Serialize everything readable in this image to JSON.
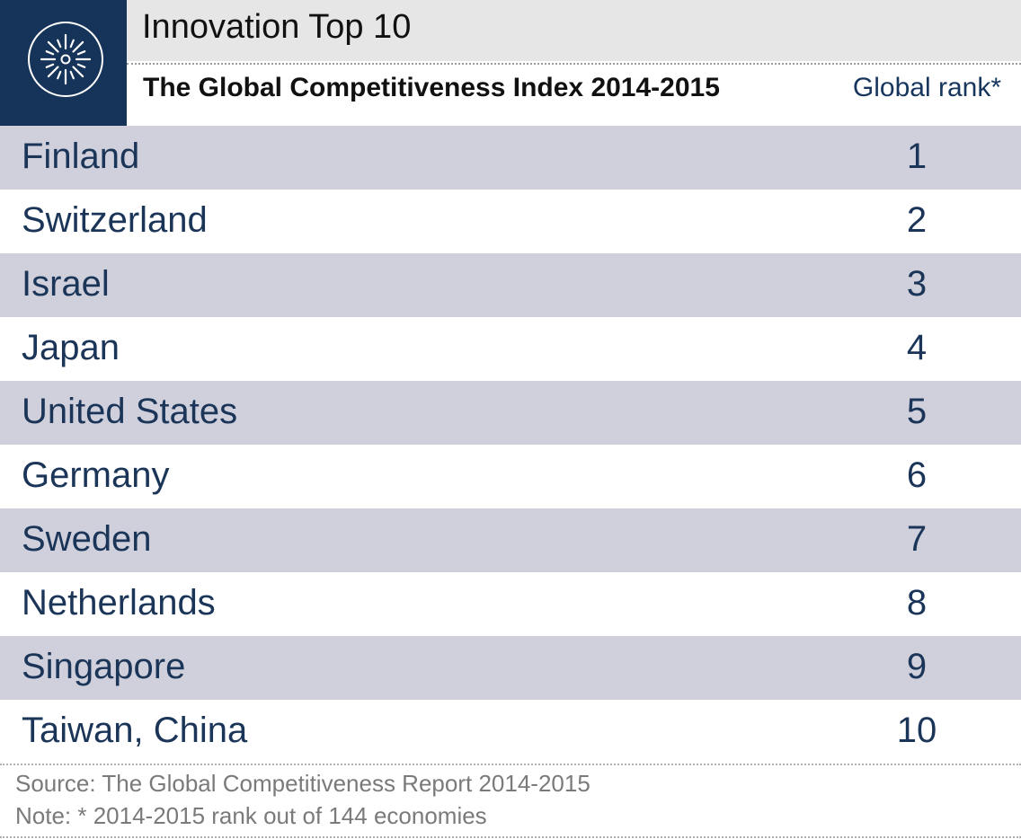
{
  "header": {
    "title": "Innovation Top 10",
    "subtitle": "The Global Competitiveness Index 2014-2015",
    "rank_column_label": "Global rank*"
  },
  "colors": {
    "logo_background": "#163359",
    "title_bar": "#e6e6e6",
    "row_shaded": "#cfd0dc",
    "row_text": "#1b3558",
    "footer_text": "#7a7a7a"
  },
  "icons": {
    "logo": "sunburst-icon"
  },
  "chart_data": {
    "type": "table",
    "title": "Innovation Top 10",
    "subtitle": "The Global Competitiveness Index 2014-2015",
    "columns": [
      "",
      "Global rank*"
    ],
    "rows": [
      {
        "country": "Finland",
        "rank": "1"
      },
      {
        "country": "Switzerland",
        "rank": "2"
      },
      {
        "country": "Israel",
        "rank": "3"
      },
      {
        "country": "Japan",
        "rank": "4"
      },
      {
        "country": "United States",
        "rank": "5"
      },
      {
        "country": "Germany",
        "rank": "6"
      },
      {
        "country": "Sweden",
        "rank": "7"
      },
      {
        "country": "Netherlands",
        "rank": "8"
      },
      {
        "country": "Singapore",
        "rank": "9"
      },
      {
        "country": "Taiwan, China",
        "rank": "10"
      }
    ]
  },
  "footer": {
    "source": "Source: The Global Competitiveness Report 2014-2015",
    "note": "Note: * 2014-2015 rank out of 144 economies"
  }
}
